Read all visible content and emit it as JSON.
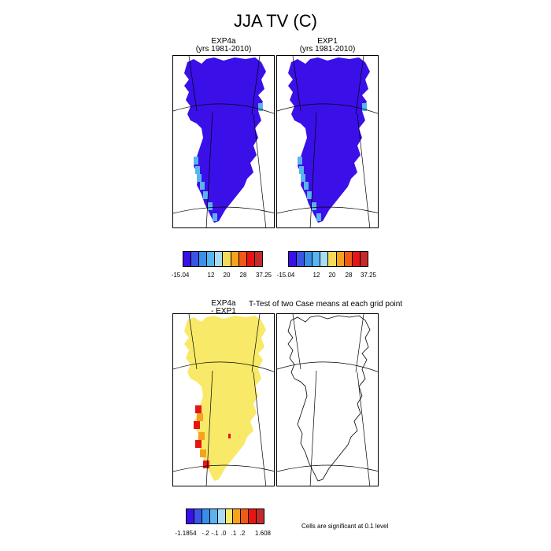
{
  "figure": {
    "title": "JJA TV (C)"
  },
  "panels": [
    {
      "line1": "EXP4a",
      "line2": "(yrs 1981-2010)"
    },
    {
      "line1": "EXP1",
      "line2": "(yrs 1981-2010)"
    },
    {
      "line1": "EXP4a",
      "line2": "- EXP1"
    }
  ],
  "ttest": {
    "title": "T-Test of two Case means at each grid point",
    "note": "Cells are significant at 0.1 level"
  },
  "colorbar_top": {
    "colors": [
      "#3b0fe8",
      "#3a54e8",
      "#3a8fe8",
      "#59b4f0",
      "#a8dcf2",
      "#f4dc5a",
      "#f6a21e",
      "#f05a14",
      "#e81414",
      "#c42a2a"
    ],
    "labels": [
      "-15.04",
      "12",
      "20",
      "28",
      "37.25"
    ]
  },
  "colorbar_bottom": {
    "colors": [
      "#3b0fe8",
      "#3a54e8",
      "#3a8fe8",
      "#59b4f0",
      "#a8dcf2",
      "#f8e968",
      "#f6a21e",
      "#f05a14",
      "#e81414",
      "#c42a2a"
    ],
    "labels": [
      "-1.1854",
      "-.2",
      "-.1",
      ".0",
      ".1",
      ".2",
      "1.608"
    ]
  },
  "colors": {
    "mean_fill": "#3b0fe8",
    "coast_warm": "#59b4f0",
    "diff_fill": "#f8e968",
    "diff_hot": "#e81414",
    "diff_orange": "#f6a21e"
  }
}
